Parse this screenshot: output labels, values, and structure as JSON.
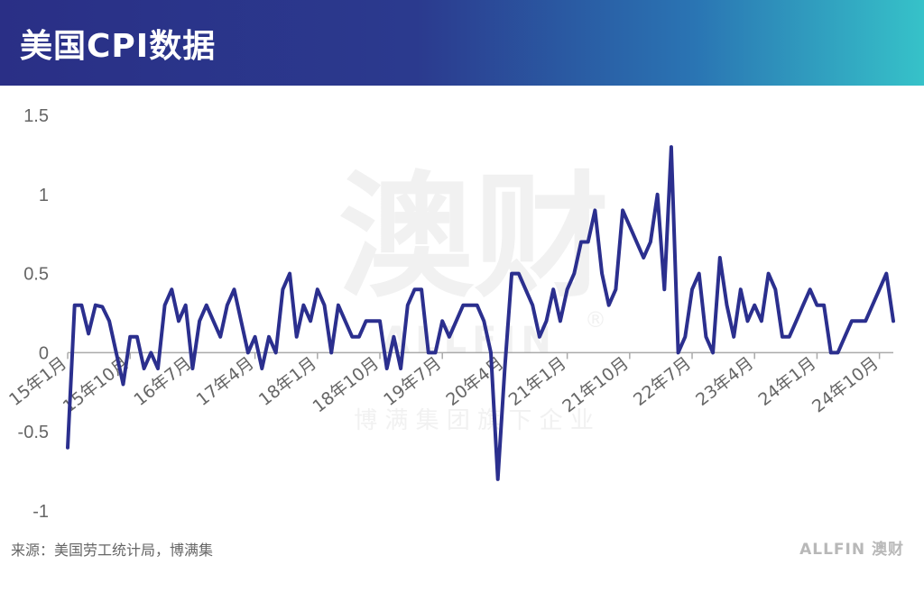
{
  "header": {
    "title": "美国CPI数据"
  },
  "footer": {
    "source": "来源：美国劳工统计局，博满集",
    "logo": "ALLFIN 澳财"
  },
  "watermark": {
    "main": "澳财",
    "sub": "ALLFIN",
    "mark": "®",
    "company": "博 满 集 团 旗 下 企 业"
  },
  "colors": {
    "line": "#2b2f8e",
    "axis": "#aaaaaa",
    "label": "#666666"
  },
  "chart_data": {
    "type": "line",
    "title": "美国CPI数据",
    "ylim": [
      -1,
      1.5
    ],
    "y_ticks": [
      "1.5",
      "1",
      "0.5",
      "0",
      "-0.5",
      "-1"
    ],
    "y_tick_values": [
      1.5,
      1,
      0.5,
      0,
      -0.5,
      -1
    ],
    "x_start": "2015-01",
    "x_tick_labels": [
      {
        "label": "15年1月",
        "index": 0
      },
      {
        "label": "15年10月",
        "index": 9
      },
      {
        "label": "16年7月",
        "index": 18
      },
      {
        "label": "17年4月",
        "index": 27
      },
      {
        "label": "18年1月",
        "index": 36
      },
      {
        "label": "18年10月",
        "index": 45
      },
      {
        "label": "19年7月",
        "index": 54
      },
      {
        "label": "20年4月",
        "index": 63
      },
      {
        "label": "21年1月",
        "index": 72
      },
      {
        "label": "21年10月",
        "index": 81
      },
      {
        "label": "22年7月",
        "index": 90
      },
      {
        "label": "23年4月",
        "index": 99
      },
      {
        "label": "24年1月",
        "index": 108
      },
      {
        "label": "24年10月",
        "index": 117
      }
    ],
    "grid": false,
    "series": [
      {
        "values": [
          -0.6,
          0.3,
          0.3,
          0.12,
          0.3,
          0.29,
          0.2,
          0,
          -0.2,
          0.1,
          0.1,
          -0.1,
          0,
          -0.1,
          0.3,
          0.4,
          0.2,
          0.3,
          -0.1,
          0.2,
          0.3,
          0.2,
          0.1,
          0.3,
          0.4,
          0.2,
          0,
          0.1,
          -0.1,
          0.1,
          0,
          0.4,
          0.5,
          0.1,
          0.3,
          0.2,
          0.4,
          0.3,
          0,
          0.3,
          0.2,
          0.1,
          0.1,
          0.2,
          0.2,
          0.2,
          -0.1,
          0.1,
          -0.1,
          0.3,
          0.4,
          0.4,
          0,
          0,
          0.2,
          0.1,
          0.2,
          0.3,
          0.3,
          0.3,
          0.2,
          0,
          -0.8,
          -0.1,
          0.5,
          0.5,
          0.4,
          0.3,
          0.1,
          0.2,
          0.4,
          0.2,
          0.4,
          0.5,
          0.7,
          0.7,
          0.9,
          0.5,
          0.3,
          0.4,
          0.9,
          0.8,
          0.7,
          0.6,
          0.7,
          1.0,
          0.4,
          1.3,
          0,
          0.1,
          0.4,
          0.5,
          0.1,
          0,
          0.6,
          0.3,
          0.1,
          0.4,
          0.2,
          0.3,
          0.2,
          0.5,
          0.4,
          0.1,
          0.1,
          0.2,
          0.3,
          0.4,
          0.3,
          0.3,
          0,
          0,
          0.1,
          0.2,
          0.2,
          0.2,
          0.3,
          0.4,
          0.5,
          0.2
        ]
      }
    ]
  }
}
